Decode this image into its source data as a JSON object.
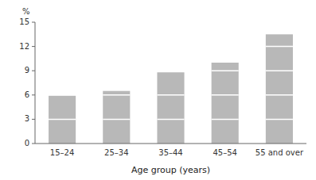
{
  "chart_data": {
    "type": "bar",
    "categories": [
      "15–24",
      "25–34",
      "35–44",
      "45–54",
      "55 and over"
    ],
    "values": [
      5.9,
      6.5,
      8.8,
      10.0,
      13.5
    ],
    "color": "#b8b8b8",
    "xlabel": "Age group (years)",
    "ylabel": "%",
    "ylim": [
      0,
      15
    ],
    "yticks": [
      0,
      3,
      6,
      9,
      12,
      15
    ],
    "grid": false
  }
}
